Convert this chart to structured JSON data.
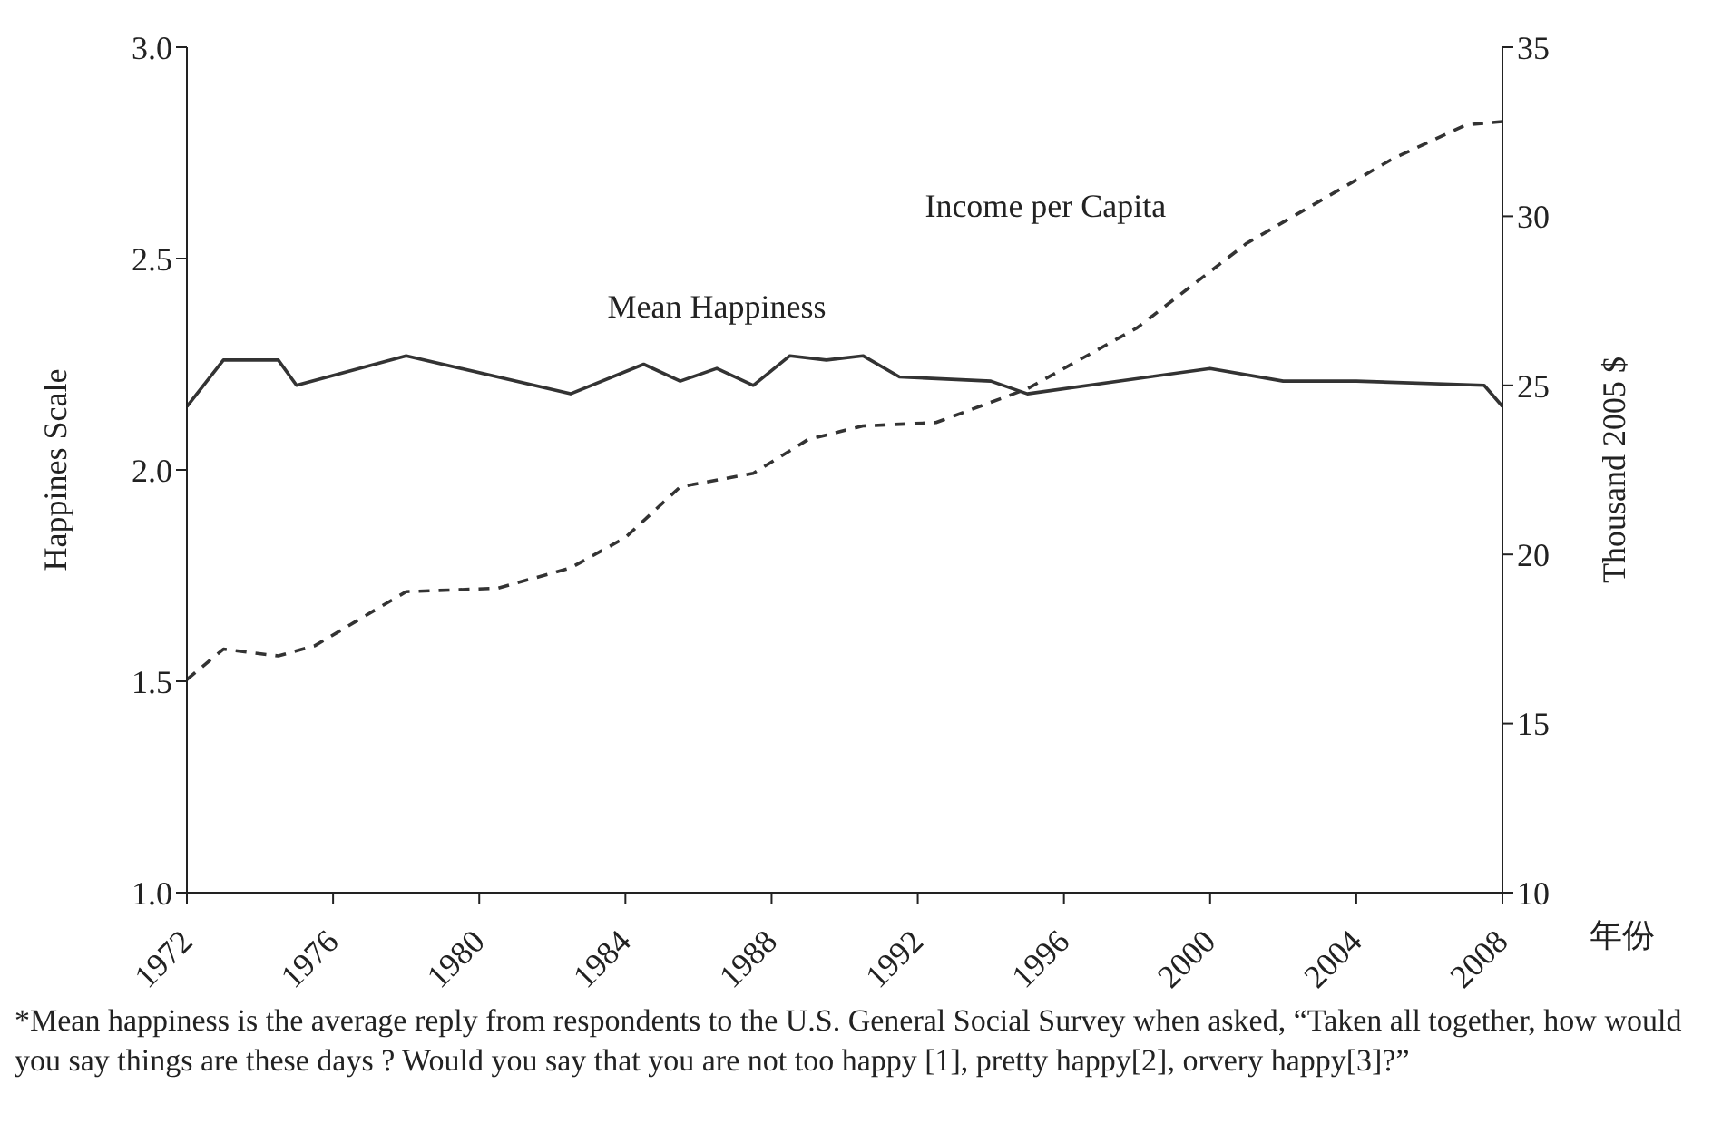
{
  "chart_data": {
    "type": "line",
    "xlabel": "年份",
    "ylabel": "Happines Scale",
    "y2label": "Thousand 2005 $",
    "xlim": [
      1972,
      2008
    ],
    "xticks": [
      1972,
      1976,
      1980,
      1984,
      1988,
      1992,
      1996,
      2000,
      2004,
      2008
    ],
    "ylim": [
      1,
      3
    ],
    "yticks": [
      {
        "value": 1,
        "label": "1.0"
      },
      {
        "value": 1.5,
        "label": "1.5"
      },
      {
        "value": 2,
        "label": "2.0"
      },
      {
        "value": 2.5,
        "label": "2.5"
      },
      {
        "value": 3,
        "label": "3.0"
      }
    ],
    "y2lim": [
      10,
      35
    ],
    "y2ticks": [
      10,
      15,
      20,
      25,
      30,
      35
    ],
    "marker": "none",
    "series": [
      {
        "name": "Mean Happiness",
        "color": "#333333",
        "line_style": "solid",
        "x": [
          1972,
          1973,
          1974.5,
          1975,
          1978,
          1982.5,
          1984.5,
          1985.5,
          1986.5,
          1987.5,
          1988.5,
          1989.5,
          1990.5,
          1991.5,
          1994,
          1995,
          2000,
          2002,
          2004,
          2007.5,
          2008
        ],
        "values": [
          2.15,
          2.26,
          2.26,
          2.2,
          2.27,
          2.18,
          2.25,
          2.21,
          2.24,
          2.2,
          2.27,
          2.26,
          2.27,
          2.22,
          2.21,
          2.18,
          2.24,
          2.21,
          2.21,
          2.2,
          2.15
        ]
      },
      {
        "name": "Income per Capita",
        "color": "#333333",
        "line_style": "dashed",
        "axis": "y2",
        "x": [
          1972,
          1973,
          1974.5,
          1975.5,
          1978,
          1980.5,
          1982.5,
          1984,
          1985.5,
          1987.5,
          1989,
          1990.5,
          1992.5,
          1995,
          1998,
          2001,
          2005,
          2007,
          2008
        ],
        "values": [
          16.3,
          17.2,
          17,
          17.3,
          18.9,
          19,
          19.6,
          20.5,
          22,
          22.4,
          23.4,
          23.8,
          23.9,
          24.9,
          26.7,
          29.2,
          31.7,
          32.7,
          32.8
        ]
      }
    ],
    "annotations": [
      "*Mean happiness is the average reply from respondents to the U.S. General Social Survey when asked, “Taken all together, how would you say things are these days ? Would you say that you are not too happy [1], pretty happy[2], orvery happy[3]?”"
    ]
  }
}
